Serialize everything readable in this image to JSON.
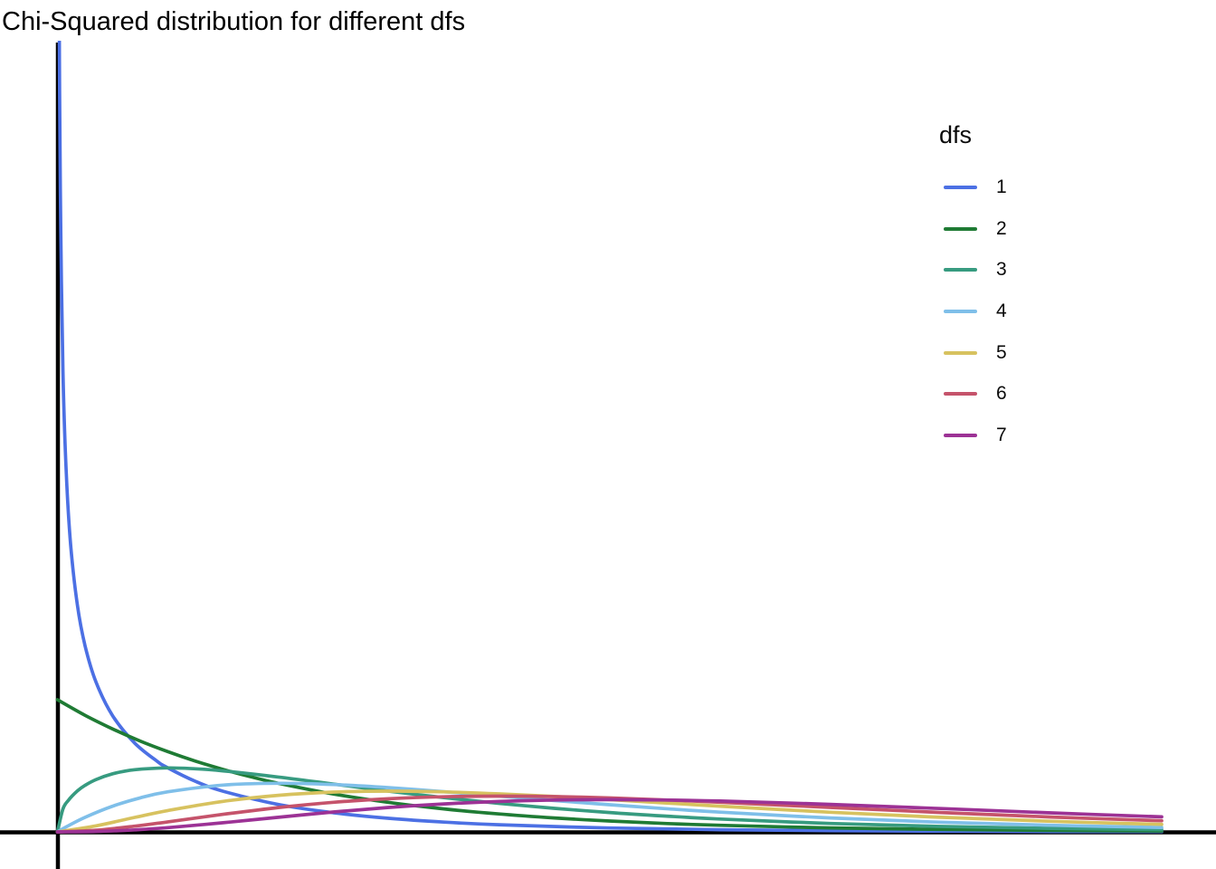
{
  "title": "Chi-Squared distribution for different dfs",
  "legend": {
    "title": "dfs",
    "entries": [
      "1",
      "2",
      "3",
      "4",
      "5",
      "6",
      "7"
    ]
  },
  "chart_data": {
    "type": "line",
    "title": "Chi-Squared distribution for different dfs",
    "xlabel": "",
    "ylabel": "",
    "xlim": [
      0,
      10
    ],
    "ylim": [
      0,
      3
    ],
    "grid": false,
    "ticks": "none",
    "background": "#ffffff",
    "axis_color": "#000000",
    "legend_position": "right",
    "legend_title": "dfs",
    "series": [
      {
        "name": "1",
        "df": 1,
        "color": "#4C70E4",
        "points": [
          [
            0.015,
            3.233
          ],
          [
            0.02,
            2.793
          ],
          [
            0.03,
            2.269
          ],
          [
            0.05,
            1.7401
          ],
          [
            0.08,
            1.3552
          ],
          [
            0.12,
            1.0846
          ],
          [
            0.18,
            0.8594
          ],
          [
            0.25,
            0.7041
          ],
          [
            0.35,
            0.5661
          ],
          [
            0.5,
            0.4394
          ],
          [
            0.7,
            0.336
          ],
          [
            0.9,
            0.2681
          ],
          [
            1,
            0.242
          ],
          [
            1.25,
            0.191
          ],
          [
            1.5,
            0.1539
          ],
          [
            2,
            0.1038
          ],
          [
            2.5,
            0.0723
          ],
          [
            3,
            0.0514
          ],
          [
            3.5,
            0.0371
          ],
          [
            4,
            0.027
          ],
          [
            5,
            0.0146
          ],
          [
            6,
            0.0081
          ],
          [
            7,
            0.0046
          ],
          [
            8,
            0.0026
          ],
          [
            9,
            0.0015
          ],
          [
            10,
            0.0009
          ]
        ]
      },
      {
        "name": "2",
        "df": 2,
        "color": "#1F7B34",
        "points": [
          [
            0,
            0.5
          ],
          [
            0.25,
            0.4412
          ],
          [
            0.5,
            0.3894
          ],
          [
            0.75,
            0.3436
          ],
          [
            1,
            0.3033
          ],
          [
            1.25,
            0.2676
          ],
          [
            1.5,
            0.2362
          ],
          [
            1.75,
            0.2084
          ],
          [
            2,
            0.1839
          ],
          [
            2.5,
            0.1433
          ],
          [
            3,
            0.1116
          ],
          [
            3.5,
            0.0869
          ],
          [
            4,
            0.0677
          ],
          [
            4.5,
            0.0527
          ],
          [
            5,
            0.041
          ],
          [
            5.5,
            0.032
          ],
          [
            6,
            0.0249
          ],
          [
            7,
            0.0151
          ],
          [
            8,
            0.0092
          ],
          [
            9,
            0.0056
          ],
          [
            10,
            0.0034
          ]
        ]
      },
      {
        "name": "3",
        "df": 3,
        "color": "#379B80",
        "points": [
          [
            0,
            0
          ],
          [
            0.05,
            0.087
          ],
          [
            0.1,
            0.12
          ],
          [
            0.18,
            0.1547
          ],
          [
            0.25,
            0.176
          ],
          [
            0.35,
            0.1981
          ],
          [
            0.5,
            0.2197
          ],
          [
            0.7,
            0.2352
          ],
          [
            1,
            0.242
          ],
          [
            1.25,
            0.2387
          ],
          [
            1.5,
            0.2308
          ],
          [
            2,
            0.2076
          ],
          [
            2.5,
            0.1807
          ],
          [
            3,
            0.1542
          ],
          [
            3.5,
            0.1297
          ],
          [
            4,
            0.108
          ],
          [
            4.5,
            0.0892
          ],
          [
            5,
            0.0732
          ],
          [
            5.5,
            0.0598
          ],
          [
            6,
            0.0487
          ],
          [
            7,
            0.0319
          ],
          [
            8,
            0.0207
          ],
          [
            9,
            0.0133
          ],
          [
            10,
            0.0085
          ]
        ]
      },
      {
        "name": "4",
        "df": 4,
        "color": "#7FBFE9",
        "points": [
          [
            0,
            0
          ],
          [
            0.1,
            0.0238
          ],
          [
            0.25,
            0.0552
          ],
          [
            0.5,
            0.0974
          ],
          [
            0.75,
            0.1289
          ],
          [
            1,
            0.1516
          ],
          [
            1.5,
            0.1771
          ],
          [
            2,
            0.1839
          ],
          [
            2.5,
            0.1791
          ],
          [
            3,
            0.1673
          ],
          [
            3.5,
            0.1521
          ],
          [
            4,
            0.1353
          ],
          [
            4.5,
            0.1186
          ],
          [
            5,
            0.1026
          ],
          [
            5.5,
            0.0879
          ],
          [
            6,
            0.0747
          ],
          [
            7,
            0.0528
          ],
          [
            8,
            0.0366
          ],
          [
            9,
            0.025
          ],
          [
            10,
            0.0168
          ]
        ]
      },
      {
        "name": "5",
        "df": 5,
        "color": "#D7C25F",
        "points": [
          [
            0,
            0
          ],
          [
            0.35,
            0.0231
          ],
          [
            0.7,
            0.0549
          ],
          [
            1,
            0.0807
          ],
          [
            1.5,
            0.1154
          ],
          [
            2,
            0.1384
          ],
          [
            2.5,
            0.1506
          ],
          [
            3,
            0.1542
          ],
          [
            3.5,
            0.1513
          ],
          [
            4,
            0.144
          ],
          [
            4.5,
            0.1338
          ],
          [
            5,
            0.122
          ],
          [
            5.5,
            0.1097
          ],
          [
            6,
            0.0973
          ],
          [
            7,
            0.0744
          ],
          [
            8,
            0.0551
          ],
          [
            9,
            0.0399
          ],
          [
            10,
            0.0283
          ]
        ]
      },
      {
        "name": "6",
        "df": 6,
        "color": "#C5536B",
        "points": [
          [
            0,
            0
          ],
          [
            0.35,
            0.0064
          ],
          [
            0.7,
            0.0216
          ],
          [
            1,
            0.0379
          ],
          [
            1.5,
            0.0664
          ],
          [
            2,
            0.092
          ],
          [
            2.5,
            0.1119
          ],
          [
            3,
            0.1255
          ],
          [
            3.5,
            0.133
          ],
          [
            4,
            0.1353
          ],
          [
            4.5,
            0.1334
          ],
          [
            5,
            0.1283
          ],
          [
            5.5,
            0.1209
          ],
          [
            6,
            0.112
          ],
          [
            7,
            0.0925
          ],
          [
            8,
            0.0733
          ],
          [
            9,
            0.0562
          ],
          [
            10,
            0.0421
          ]
        ]
      },
      {
        "name": "7",
        "df": 7,
        "color": "#9C3295",
        "points": [
          [
            0,
            0
          ],
          [
            0.35,
            0.0016
          ],
          [
            0.7,
            0.0077
          ],
          [
            1,
            0.0161
          ],
          [
            1.5,
            0.0346
          ],
          [
            2,
            0.0553
          ],
          [
            2.5,
            0.0753
          ],
          [
            3,
            0.0925
          ],
          [
            3.5,
            0.1059
          ],
          [
            4,
            0.1152
          ],
          [
            4.5,
            0.1204
          ],
          [
            5,
            0.122
          ],
          [
            5.5,
            0.1206
          ],
          [
            6,
            0.1168
          ],
          [
            7,
            0.1041
          ],
          [
            8,
            0.0882
          ],
          [
            9,
            0.0718
          ],
          [
            10,
            0.0567
          ]
        ]
      }
    ]
  }
}
